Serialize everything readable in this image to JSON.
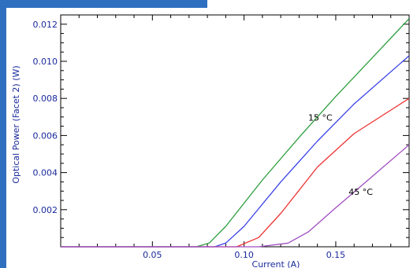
{
  "colors": {
    "background_accent": "#2f6fbf",
    "axis_text": "#1a2a9c",
    "axes": "#000000"
  },
  "chart_data": {
    "type": "line",
    "title": "",
    "xlabel": "Current (A)",
    "ylabel": "Optical Power (Facet 2) (W)",
    "xlim": [
      0,
      0.19
    ],
    "ylim": [
      0,
      0.0125
    ],
    "x_ticks": [
      {
        "value": 0.05,
        "label": "0.05"
      },
      {
        "value": 0.1,
        "label": "0.10"
      },
      {
        "value": 0.15,
        "label": "0.15"
      }
    ],
    "y_ticks": [
      {
        "value": 0.002,
        "label": "0.002"
      },
      {
        "value": 0.004,
        "label": "0.004"
      },
      {
        "value": 0.006,
        "label": "0.006"
      },
      {
        "value": 0.008,
        "label": "0.008"
      },
      {
        "value": 0.01,
        "label": "0.010"
      },
      {
        "value": 0.012,
        "label": "0.012"
      }
    ],
    "grid": false,
    "legend": "none",
    "annotations": [
      {
        "text": "15 °C",
        "x": 0.135,
        "y": 0.0068
      },
      {
        "text": "45 °C",
        "x": 0.157,
        "y": 0.0028
      }
    ],
    "series": [
      {
        "color": "#2e9e3e",
        "x": [
          0.0,
          0.074,
          0.081,
          0.09,
          0.11,
          0.13,
          0.15,
          0.17,
          0.19
        ],
        "y": [
          0.0,
          0.0,
          0.0002,
          0.0011,
          0.0036,
          0.0059,
          0.0081,
          0.0102,
          0.0123
        ]
      },
      {
        "color": "#3b43e6",
        "x": [
          0.0,
          0.084,
          0.09,
          0.1,
          0.12,
          0.14,
          0.16,
          0.19
        ],
        "y": [
          0.0,
          0.0,
          0.0002,
          0.0011,
          0.0035,
          0.0057,
          0.0077,
          0.0103
        ]
      },
      {
        "color": "#ee3333",
        "x": [
          0.0,
          0.096,
          0.108,
          0.12,
          0.14,
          0.16,
          0.19
        ],
        "y": [
          0.0,
          0.0,
          0.0005,
          0.0018,
          0.0043,
          0.0061,
          0.008
        ]
      },
      {
        "color": "#a04fc0",
        "x": [
          0.0,
          0.108,
          0.124,
          0.135,
          0.15,
          0.17,
          0.19
        ],
        "y": [
          0.0,
          0.0,
          0.0002,
          0.0008,
          0.0021,
          0.0038,
          0.0055
        ]
      }
    ]
  }
}
